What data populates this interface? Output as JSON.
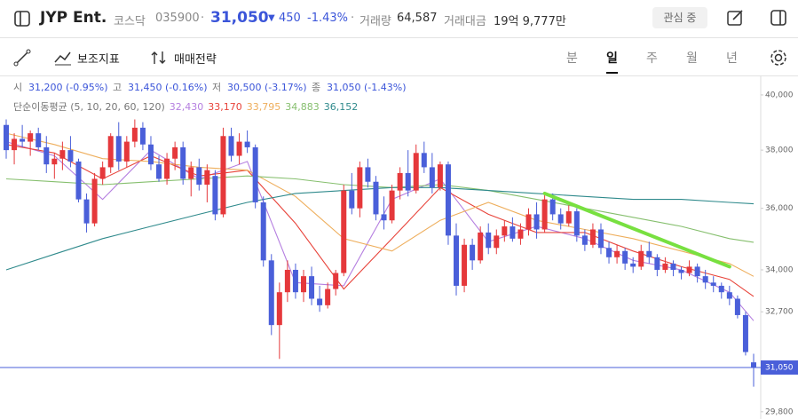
{
  "header": {
    "name": "JYP Ent.",
    "market": "코스닥",
    "code": "035900",
    "price": "31,050",
    "change": "450",
    "change_pct": "-1.43%",
    "volume_label": "거래량",
    "volume": "64,587",
    "amount_label": "거래대금",
    "amount": "19억 9,777만",
    "watch_button": "관심 중"
  },
  "toolbar": {
    "indicators": "보조지표",
    "strategy": "매매전략",
    "periods": [
      "분",
      "일",
      "주",
      "월",
      "년"
    ],
    "active_period": 1
  },
  "chart_data": {
    "type": "candlestick",
    "log": true,
    "ylim": [
      29600,
      40730
    ],
    "yticks": [
      {
        "value": 29800,
        "label": "29,800"
      },
      {
        "value": 32700,
        "label": "32,700"
      },
      {
        "value": 34000,
        "label": "34,000"
      },
      {
        "value": 36000,
        "label": "36,000"
      },
      {
        "value": 38000,
        "label": "38,000"
      },
      {
        "value": 40000,
        "label": "40,000"
      }
    ],
    "up_color": "#e5383b",
    "down_color": "#4a5fd9",
    "ohlc_labels": [
      {
        "label": "시",
        "value": "31,200 (-0.95%)"
      },
      {
        "label": "고",
        "value": "31,450 (-0.16%)"
      },
      {
        "label": "저",
        "value": "30,500 (-3.17%)"
      },
      {
        "label": "종",
        "value": "31,050 (-1.43%)"
      }
    ],
    "last_price": {
      "value": 31050,
      "label": "31,050"
    },
    "ohlc": [
      [
        38900,
        39100,
        37700,
        38000
      ],
      [
        38000,
        38600,
        37500,
        38400
      ],
      [
        38400,
        38900,
        38100,
        38300
      ],
      [
        38300,
        38700,
        37800,
        38600
      ],
      [
        38600,
        38800,
        38000,
        38100
      ],
      [
        38100,
        38500,
        37200,
        37500
      ],
      [
        37500,
        37900,
        37000,
        37700
      ],
      [
        37700,
        38300,
        37300,
        38000
      ],
      [
        38000,
        38500,
        37400,
        37600
      ],
      [
        37600,
        37700,
        36200,
        36300
      ],
      [
        36300,
        36500,
        35200,
        35500
      ],
      [
        35500,
        37200,
        35400,
        37000
      ],
      [
        37000,
        37600,
        36800,
        37400
      ],
      [
        37400,
        38600,
        37200,
        38500
      ],
      [
        38500,
        39000,
        37300,
        37600
      ],
      [
        37600,
        38500,
        37400,
        38300
      ],
      [
        38300,
        39100,
        38100,
        38800
      ],
      [
        38800,
        39000,
        38000,
        38200
      ],
      [
        38200,
        38500,
        37300,
        37500
      ],
      [
        37500,
        37800,
        36900,
        37000
      ],
      [
        37000,
        37900,
        36800,
        37700
      ],
      [
        37700,
        38300,
        37300,
        38100
      ],
      [
        38100,
        38300,
        36800,
        37000
      ],
      [
        37000,
        37600,
        36400,
        37400
      ],
      [
        37400,
        37700,
        36600,
        36800
      ],
      [
        36800,
        37500,
        36200,
        37300
      ],
      [
        37100,
        37300,
        35600,
        35800
      ],
      [
        35800,
        38800,
        35700,
        38500
      ],
      [
        38500,
        38800,
        37600,
        37800
      ],
      [
        37800,
        38600,
        37500,
        38300
      ],
      [
        38300,
        38700,
        37900,
        38100
      ],
      [
        38100,
        38200,
        36000,
        36200
      ],
      [
        36200,
        36400,
        34100,
        34300
      ],
      [
        34300,
        34500,
        32000,
        32300
      ],
      [
        32300,
        33600,
        31300,
        33300
      ],
      [
        33300,
        34300,
        33000,
        34000
      ],
      [
        34000,
        34200,
        33100,
        33300
      ],
      [
        33300,
        34000,
        33000,
        33800
      ],
      [
        33800,
        34100,
        32900,
        33100
      ],
      [
        33100,
        33500,
        32700,
        32900
      ],
      [
        32900,
        33600,
        32800,
        33400
      ],
      [
        33400,
        34000,
        33200,
        33900
      ],
      [
        33900,
        36800,
        33800,
        36600
      ],
      [
        36600,
        37200,
        35800,
        36000
      ],
      [
        36000,
        37600,
        35700,
        37400
      ],
      [
        37400,
        37700,
        36700,
        36900
      ],
      [
        36900,
        37100,
        35600,
        35800
      ],
      [
        35800,
        36400,
        35300,
        35600
      ],
      [
        35600,
        36800,
        35500,
        36600
      ],
      [
        36600,
        37400,
        36300,
        37200
      ],
      [
        37200,
        38000,
        36400,
        36600
      ],
      [
        36600,
        38200,
        36500,
        37900
      ],
      [
        37900,
        38300,
        37200,
        37400
      ],
      [
        37400,
        37900,
        36500,
        36700
      ],
      [
        36700,
        37600,
        36600,
        37500
      ],
      [
        37500,
        37600,
        34800,
        35100
      ],
      [
        35100,
        35500,
        33200,
        33500
      ],
      [
        33500,
        35000,
        33300,
        34800
      ],
      [
        34800,
        35000,
        34000,
        34300
      ],
      [
        34300,
        35400,
        34200,
        35200
      ],
      [
        35200,
        35500,
        34500,
        34700
      ],
      [
        34700,
        35300,
        34500,
        35100
      ],
      [
        35100,
        35600,
        34900,
        35400
      ],
      [
        35400,
        35700,
        34900,
        35000
      ],
      [
        35000,
        35500,
        34800,
        35300
      ],
      [
        35300,
        36000,
        35100,
        35800
      ],
      [
        35800,
        36200,
        35000,
        35300
      ],
      [
        35300,
        36500,
        35200,
        36300
      ],
      [
        36300,
        36500,
        35600,
        35800
      ],
      [
        35800,
        36000,
        35300,
        35500
      ],
      [
        35500,
        36100,
        35400,
        35900
      ],
      [
        35900,
        36000,
        34900,
        35100
      ],
      [
        35100,
        35300,
        34600,
        34800
      ],
      [
        34800,
        35500,
        34700,
        35300
      ],
      [
        35300,
        35500,
        34500,
        34700
      ],
      [
        34700,
        34900,
        34200,
        34400
      ],
      [
        34400,
        34800,
        34200,
        34600
      ],
      [
        34600,
        34700,
        34000,
        34200
      ],
      [
        34200,
        34400,
        33900,
        34100
      ],
      [
        34100,
        34800,
        34000,
        34600
      ],
      [
        34600,
        34900,
        34200,
        34400
      ],
      [
        34400,
        34500,
        33800,
        34000
      ],
      [
        34000,
        34400,
        33900,
        34200
      ],
      [
        34200,
        34300,
        33800,
        34000
      ],
      [
        34000,
        34100,
        33700,
        33900
      ],
      [
        33900,
        34300,
        33800,
        34100
      ],
      [
        34100,
        34200,
        33600,
        33800
      ],
      [
        33800,
        34000,
        33400,
        33600
      ],
      [
        33600,
        33800,
        33300,
        33500
      ],
      [
        33500,
        33600,
        33100,
        33300
      ],
      [
        33300,
        33500,
        32900,
        33100
      ],
      [
        33100,
        33200,
        32500,
        32600
      ],
      [
        32600,
        32700,
        31400,
        31500
      ],
      [
        31200,
        31450,
        30500,
        31050
      ]
    ],
    "ma_label": "단순이동평균 (5, 10, 20, 60, 120)",
    "ma_x": [
      0,
      6,
      12,
      18,
      24,
      30,
      36,
      42,
      48,
      54,
      60,
      66,
      72,
      78,
      84,
      90,
      93
    ],
    "moving_averages": [
      {
        "label": "32,430",
        "color": "#b57fe0",
        "values": [
          38300,
          37800,
          36300,
          38000,
          37000,
          37600,
          33600,
          33500,
          36300,
          37000,
          34900,
          35400,
          35000,
          34300,
          34000,
          33300,
          32430
        ]
      },
      {
        "label": "33,170",
        "color": "#e8433a",
        "values": [
          38200,
          37900,
          37000,
          37800,
          37100,
          37300,
          35500,
          33400,
          35000,
          36700,
          35800,
          35200,
          35200,
          34600,
          34100,
          33700,
          33170
        ]
      },
      {
        "label": "33,795",
        "color": "#eeae5c",
        "values": [
          38600,
          38200,
          37700,
          37600,
          37400,
          37300,
          36400,
          35000,
          34600,
          35600,
          36200,
          35600,
          35300,
          35000,
          34600,
          34200,
          33795
        ]
      },
      {
        "label": "34,883",
        "color": "#86bf6e",
        "values": [
          37000,
          36900,
          36800,
          36900,
          37000,
          37100,
          37000,
          36800,
          36700,
          36800,
          36600,
          36300,
          36000,
          35700,
          35400,
          35000,
          34883
        ]
      },
      {
        "label": "36,152",
        "color": "#2f8a8c",
        "values": [
          34000,
          34500,
          35000,
          35400,
          35800,
          36200,
          36500,
          36600,
          36700,
          36700,
          36600,
          36500,
          36400,
          36300,
          36300,
          36200,
          36152
        ]
      }
    ],
    "trendline": {
      "x": [
        67,
        90
      ],
      "values": [
        36500,
        34100
      ],
      "color": "#78e040"
    }
  }
}
